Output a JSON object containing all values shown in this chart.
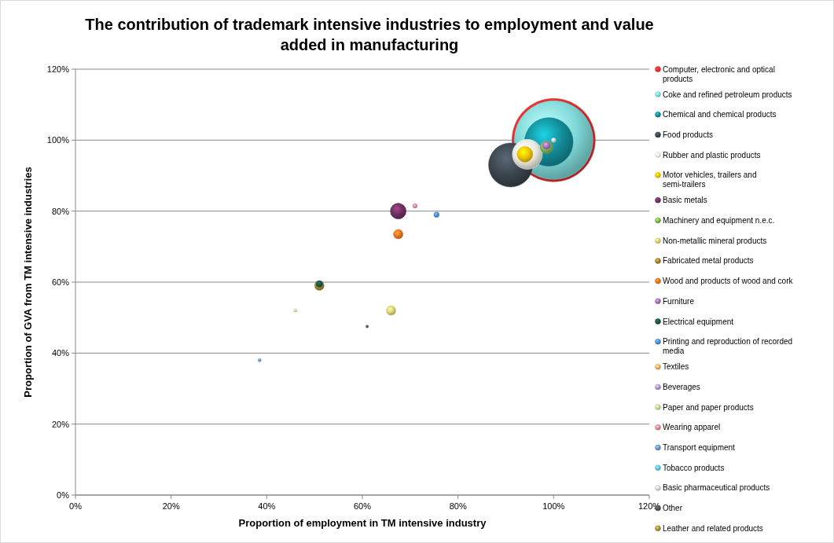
{
  "chart_data": {
    "type": "bubble",
    "title": "The contribution of trademark intensive industries to employment and value added in manufacturing",
    "xlabel": "Proportion of employment in TM intensive industry",
    "ylabel": "Proportion of GVA from TM intensive industries",
    "xlim": [
      0,
      120
    ],
    "ylim": [
      0,
      120
    ],
    "xticks": [
      {
        "value": 0,
        "label": "0%"
      },
      {
        "value": 20,
        "label": "20%"
      },
      {
        "value": 40,
        "label": "40%"
      },
      {
        "value": 60,
        "label": "60%"
      },
      {
        "value": 80,
        "label": "80%"
      },
      {
        "value": 100,
        "label": "100%"
      },
      {
        "value": 120,
        "label": "120%"
      }
    ],
    "yticks": [
      {
        "value": 0,
        "label": "0%"
      },
      {
        "value": 20,
        "label": "20%"
      },
      {
        "value": 40,
        "label": "40%"
      },
      {
        "value": 60,
        "label": "60%"
      },
      {
        "value": 80,
        "label": "80%"
      },
      {
        "value": 100,
        "label": "100%"
      },
      {
        "value": 120,
        "label": "120%"
      }
    ],
    "grid": "y",
    "legend": "right",
    "marker": "circle",
    "series": [
      {
        "name": "Computer, electronic and optical products",
        "color": "#e03030",
        "x": [
          100
        ],
        "values": [
          100
        ],
        "sizes": [
          1
        ]
      },
      {
        "name": "Coke and refined petroleum products",
        "color": "#7fd8d8",
        "x": [
          100
        ],
        "values": [
          100
        ],
        "sizes": [
          0.89
        ]
      },
      {
        "name": "Chemical and chemical products",
        "color": "#138a96",
        "x": [
          99
        ],
        "values": [
          99.5
        ],
        "sizes": [
          0.34
        ]
      },
      {
        "name": "Food products",
        "color": "#3a444c",
        "x": [
          91
        ],
        "values": [
          93
        ],
        "sizes": [
          0.28
        ]
      },
      {
        "name": "Rubber and plastic products",
        "color": "#e8e8e0",
        "x": [
          94.5
        ],
        "values": [
          96
        ],
        "sizes": [
          0.13
        ]
      },
      {
        "name": "Motor vehicles, trailers and semi-trailers",
        "color": "#e8c000",
        "x": [
          94
        ],
        "values": [
          96
        ],
        "sizes": [
          0.036
        ]
      },
      {
        "name": "Basic metals",
        "color": "#6a2f5c",
        "x": [
          67.5
        ],
        "values": [
          80
        ],
        "sizes": [
          0.036
        ]
      },
      {
        "name": "Machinery and equipment n.e.c.",
        "color": "#7ab050",
        "x": [
          98.5
        ],
        "values": [
          98
        ],
        "sizes": [
          0.023
        ]
      },
      {
        "name": "Non-metallic mineral products",
        "color": "#d8cc70",
        "x": [
          66
        ],
        "values": [
          52
        ],
        "sizes": [
          0.013
        ]
      },
      {
        "name": "Fabricated metal products",
        "color": "#9a8030",
        "x": [
          51
        ],
        "values": [
          59
        ],
        "sizes": [
          0.013
        ]
      },
      {
        "name": "Wood and products of wood and cork",
        "color": "#e07020",
        "x": [
          67.5
        ],
        "values": [
          73.5
        ],
        "sizes": [
          0.013
        ]
      },
      {
        "name": "Furniture",
        "color": "#9a70b0",
        "x": [
          98.5
        ],
        "values": [
          98.5
        ],
        "sizes": [
          0.009
        ]
      },
      {
        "name": "Electrical equipment",
        "color": "#1e5040",
        "x": [
          51
        ],
        "values": [
          59.5
        ],
        "sizes": [
          0.006
        ]
      },
      {
        "name": "Printing and reproduction of recorded media",
        "color": "#4a88d0",
        "x": [
          75.5
        ],
        "values": [
          79
        ],
        "sizes": [
          0.004
        ]
      },
      {
        "name": "Textiles",
        "color": "#e8a868",
        "x": [
          null
        ],
        "values": [
          null
        ],
        "sizes": [
          null
        ]
      },
      {
        "name": "Beverages",
        "color": "#a890c8",
        "x": [
          null
        ],
        "values": [
          null
        ],
        "sizes": [
          null
        ]
      },
      {
        "name": "Paper and paper products",
        "color": "#b8d890",
        "x": [
          46
        ],
        "values": [
          52
        ],
        "sizes": [
          0.0015
        ]
      },
      {
        "name": "Wearing apparel",
        "color": "#d88890",
        "x": [
          71
        ],
        "values": [
          81.5
        ],
        "sizes": [
          0.003
        ]
      },
      {
        "name": "Transport equipment",
        "color": "#6a90c0",
        "x": [
          38.5
        ],
        "values": [
          38
        ],
        "sizes": [
          0.0015
        ]
      },
      {
        "name": "Tobacco products",
        "color": "#60c0d8",
        "x": [
          null
        ],
        "values": [
          null
        ],
        "sizes": [
          null
        ]
      },
      {
        "name": "Basic pharmaceutical products",
        "color": "#d0d0d0",
        "x": [
          100
        ],
        "values": [
          100
        ],
        "sizes": [
          0.003
        ]
      },
      {
        "name": "Other",
        "color": "#505050",
        "x": [
          61
        ],
        "values": [
          47.5
        ],
        "sizes": [
          0.001
        ]
      },
      {
        "name": "Leather and related products",
        "color": "#9a9040",
        "x": [
          null
        ],
        "values": [
          null
        ],
        "sizes": [
          null
        ]
      }
    ]
  }
}
